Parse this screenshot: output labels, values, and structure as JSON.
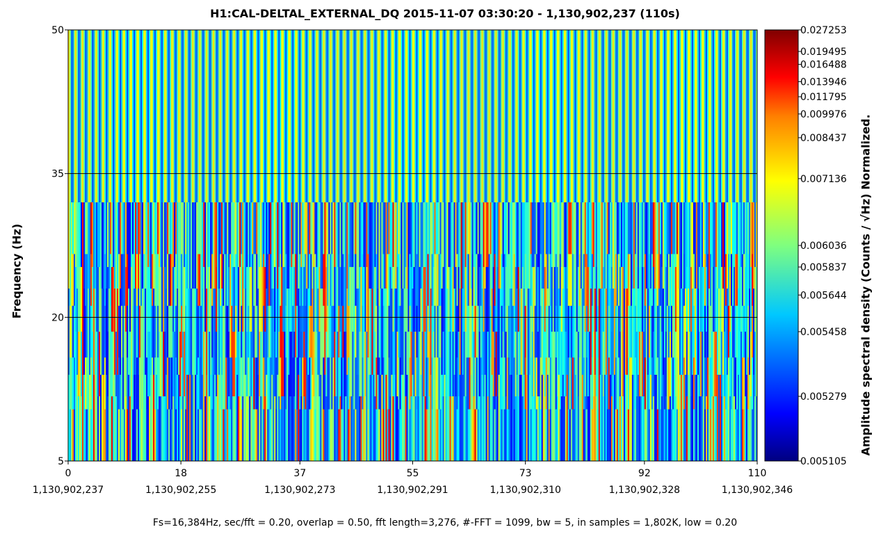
{
  "chart_data": {
    "type": "heatmap",
    "title": "H1:CAL-DELTAL_EXTERNAL_DQ 2015-11-07 03:30:20 - 1,130,902,237 (110s)",
    "ylabel": "Frequency (Hz)",
    "xlim": [
      0,
      110
    ],
    "ylim": [
      5,
      50
    ],
    "x_ticks": [
      {
        "value": 0,
        "label": "0",
        "gps": "1,130,902,237"
      },
      {
        "value": 18,
        "label": "18",
        "gps": "1,130,902,255"
      },
      {
        "value": 37,
        "label": "37",
        "gps": "1,130,902,273"
      },
      {
        "value": 55,
        "label": "55",
        "gps": "1,130,902,291"
      },
      {
        "value": 73,
        "label": "73",
        "gps": "1,130,902,310"
      },
      {
        "value": 92,
        "label": "92",
        "gps": "1,130,902,328"
      },
      {
        "value": 110,
        "label": "110",
        "gps": "1,130,902,346"
      }
    ],
    "y_ticks": [
      {
        "value": 5,
        "label": "5"
      },
      {
        "value": 20,
        "label": "20"
      },
      {
        "value": 35,
        "label": "35"
      },
      {
        "value": 50,
        "label": "50"
      }
    ],
    "grid_lines_y": [
      20,
      35
    ],
    "colorbar": {
      "label": "Amplitude spectral density (Counts / √Hz) Normalized.",
      "colormap": "jet",
      "ticks": [
        {
          "fraction": 0.0,
          "label": "0.005105"
        },
        {
          "fraction": 0.15,
          "label": "0.005279"
        },
        {
          "fraction": 0.3,
          "label": "0.005458"
        },
        {
          "fraction": 0.385,
          "label": "0.005644"
        },
        {
          "fraction": 0.45,
          "label": "0.005837"
        },
        {
          "fraction": 0.5,
          "label": "0.006036"
        },
        {
          "fraction": 0.655,
          "label": "0.007136"
        },
        {
          "fraction": 0.75,
          "label": "0.008437"
        },
        {
          "fraction": 0.805,
          "label": "0.009976"
        },
        {
          "fraction": 0.845,
          "label": "0.011795"
        },
        {
          "fraction": 0.88,
          "label": "0.013946"
        },
        {
          "fraction": 0.92,
          "label": "0.016488"
        },
        {
          "fraction": 0.95,
          "label": "0.019495"
        },
        {
          "fraction": 1.0,
          "label": "0.027253"
        }
      ]
    },
    "band_structure": {
      "upper_band_hz": [
        32,
        50
      ],
      "upper_band_line_period_s": 1.1
    }
  },
  "footer": "Fs=16,384Hz, sec/fft = 0.20, overlap = 0.50, fft length=3,276, #-FFT = 1099, bw = 5, in samples = 1,802K, low = 0.20"
}
